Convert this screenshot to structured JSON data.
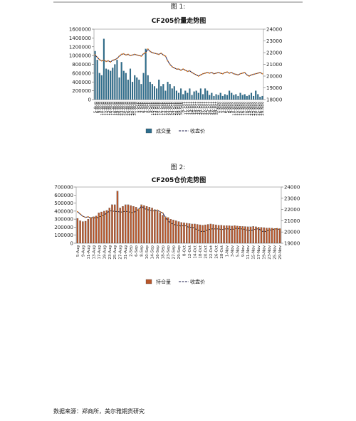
{
  "chart_data": [
    {
      "type": "bar",
      "figure_label": "图 1:",
      "title": "CF205价量走势图",
      "categories": [
        "5-Aug",
        "6-Aug",
        "9-Aug",
        "10-Aug",
        "11-Aug",
        "12-Aug",
        "13-Aug",
        "16-Aug",
        "17-Aug",
        "18-Aug",
        "19-Aug",
        "20-Aug",
        "23-Aug",
        "24-Aug",
        "25-Aug",
        "26-Aug",
        "27-Aug",
        "30-Aug",
        "31-Aug",
        "1-Sep",
        "2-Sep",
        "3-Sep",
        "6-Sep",
        "7-Sep",
        "8-Sep",
        "9-Sep",
        "10-Sep",
        "13-Sep",
        "14-Sep",
        "15-Sep",
        "16-Sep",
        "17-Sep",
        "18-Sep",
        "22-Sep",
        "23-Sep",
        "24-Sep",
        "27-Sep",
        "28-Sep",
        "29-Sep",
        "30-Sep",
        "8-Oct",
        "11-Oct",
        "12-Oct",
        "13-Oct",
        "14-Oct",
        "15-Oct",
        "18-Oct",
        "19-Oct",
        "20-Oct",
        "21-Oct",
        "22-Oct",
        "25-Oct",
        "26-Oct",
        "27-Oct",
        "28-Oct",
        "29-Oct",
        "1-Nov",
        "2-Nov",
        "3-Nov",
        "4-Nov",
        "5-Nov",
        "8-Nov",
        "9-Nov",
        "10-Nov",
        "11-Nov",
        "12-Nov",
        "15-Nov",
        "16-Nov",
        "17-Nov",
        "18-Nov",
        "19-Nov",
        "22-Nov",
        "23-Nov",
        "24-Nov",
        "25-Nov",
        "26-Nov",
        "29-Nov"
      ],
      "series": [
        {
          "name": "成交量",
          "color": "#2e6e8e",
          "values": [
            1100000,
            900000,
            600000,
            550000,
            1380000,
            700000,
            680000,
            650000,
            720000,
            800000,
            900000,
            500000,
            850000,
            650000,
            600000,
            450000,
            700000,
            400000,
            550000,
            500000,
            450000,
            350000,
            600000,
            1150000,
            550000,
            400000,
            350000,
            300000,
            250000,
            450000,
            300000,
            350000,
            200000,
            400000,
            350000,
            250000,
            300000,
            200000,
            150000,
            250000,
            120000,
            200000,
            150000,
            250000,
            100000,
            180000,
            200000,
            150000,
            250000,
            120000,
            250000,
            200000,
            100000,
            150000,
            80000,
            120000,
            100000,
            150000,
            80000,
            120000,
            100000,
            200000,
            150000,
            100000,
            120000,
            80000,
            150000,
            100000,
            120000,
            80000,
            100000,
            150000,
            80000,
            200000,
            120000,
            60000,
            80000
          ]
        },
        {
          "name": "收盘价",
          "color": "#1c1c4c",
          "axis": "y2",
          "values": [
            21800,
            21600,
            21400,
            21300,
            21350,
            21250,
            21300,
            21200,
            21350,
            21400,
            21500,
            21700,
            21850,
            21900,
            21800,
            21850,
            21750,
            21800,
            21850,
            21800,
            21750,
            21700,
            21900,
            22000,
            22300,
            22100,
            22000,
            21950,
            21900,
            21850,
            21950,
            21800,
            21700,
            21300,
            21000,
            20800,
            20700,
            20600,
            20600,
            20500,
            20600,
            20500,
            20400,
            20450,
            20300,
            20200,
            20100,
            20000,
            20100,
            20200,
            20250,
            20300,
            20250,
            20300,
            20200,
            20250,
            20300,
            20250,
            20200,
            20300,
            20350,
            20250,
            20300,
            20200,
            20150,
            20100,
            20200,
            20250,
            20300,
            20100,
            20000,
            20100,
            20150,
            20200,
            20250,
            20300,
            20200
          ]
        }
      ],
      "ylim": [
        0,
        1600000
      ],
      "yticks": [
        0,
        200000,
        400000,
        600000,
        800000,
        1000000,
        1200000,
        1400000,
        1600000
      ],
      "y2lim": [
        18000,
        24000
      ],
      "y2ticks": [
        18000,
        19000,
        20000,
        21000,
        22000,
        23000,
        24000
      ],
      "legend": "bottom",
      "marker_color": "#e07b1a"
    },
    {
      "type": "bar",
      "figure_label": "图 2:",
      "title": "CF205仓价走势图",
      "categories": [
        "5-Aug",
        null,
        "9-Aug",
        null,
        "11-Aug",
        null,
        "13-Aug",
        null,
        "17-Aug",
        null,
        "19-Aug",
        null,
        "23-Aug",
        null,
        "25-Aug",
        null,
        "27-Aug",
        null,
        "31-Aug",
        null,
        "2-Sep",
        null,
        "6-Sep",
        null,
        "8-Sep",
        null,
        "10-Sep",
        null,
        "14-Sep",
        null,
        "16-Sep",
        null,
        "18-Sep",
        null,
        "23-Sep",
        null,
        "27-Sep",
        null,
        "29-Sep",
        null,
        "8-Oct",
        null,
        "12-Oct",
        null,
        "14-Oct",
        null,
        "18-Oct",
        null,
        "20-Oct",
        null,
        "22-Oct",
        null,
        "26-Oct",
        null,
        "28-Oct",
        null,
        "1-Nov",
        null,
        "3-Nov",
        null,
        "5-Nov",
        null,
        "9-Nov",
        null,
        "11-Nov",
        null,
        "15-Nov",
        null,
        "17-Nov",
        null,
        "19-Nov",
        null,
        "23-Nov",
        null,
        "25-Nov",
        null,
        "29-Nov"
      ],
      "series": [
        {
          "name": "持仓量",
          "color": "#b8562a",
          "values": [
            310000,
            280000,
            270000,
            275000,
            300000,
            320000,
            330000,
            340000,
            380000,
            390000,
            400000,
            410000,
            440000,
            480000,
            480000,
            650000,
            440000,
            460000,
            480000,
            480000,
            470000,
            460000,
            450000,
            430000,
            480000,
            470000,
            460000,
            450000,
            440000,
            420000,
            400000,
            380000,
            350000,
            330000,
            320000,
            300000,
            290000,
            280000,
            270000,
            260000,
            255000,
            250000,
            245000,
            240000,
            240000,
            235000,
            230000,
            225000,
            230000,
            235000,
            240000,
            235000,
            230000,
            225000,
            225000,
            220000,
            220000,
            218000,
            215000,
            220000,
            215000,
            212000,
            210000,
            208000,
            205000,
            205000,
            210000,
            205000,
            200000,
            198000,
            195000,
            190000,
            190000,
            188000,
            185000,
            185000,
            182000
          ]
        },
        {
          "name": "收盘价",
          "color": "#1c1c4c",
          "axis": "y2",
          "values": [
            21800,
            21600,
            21400,
            21300,
            21350,
            21250,
            21300,
            21200,
            21350,
            21400,
            21500,
            21700,
            21850,
            21900,
            21800,
            21850,
            21750,
            21800,
            21850,
            21800,
            21750,
            21700,
            21900,
            22000,
            22300,
            22100,
            22000,
            21950,
            21900,
            21850,
            21950,
            21800,
            21700,
            21300,
            21000,
            20800,
            20700,
            20600,
            20600,
            20500,
            20600,
            20500,
            20400,
            20450,
            20300,
            20200,
            20100,
            20000,
            20100,
            20200,
            20250,
            20300,
            20250,
            20300,
            20200,
            20250,
            20300,
            20250,
            20200,
            20300,
            20350,
            20250,
            20300,
            20200,
            20150,
            20100,
            20200,
            20250,
            20300,
            20100,
            20000,
            20100,
            20150,
            20200,
            20250,
            20300,
            20200
          ]
        }
      ],
      "ylim": [
        0,
        700000
      ],
      "yticks": [
        0,
        100000,
        200000,
        300000,
        400000,
        500000,
        600000,
        700000
      ],
      "y2lim": [
        19000,
        24000
      ],
      "y2ticks": [
        19000,
        20000,
        21000,
        22000,
        23000,
        24000
      ],
      "legend": "bottom",
      "marker_color": "#e07b1a"
    }
  ],
  "footer": "数据来源：郑商所，美尔雅期货研究"
}
